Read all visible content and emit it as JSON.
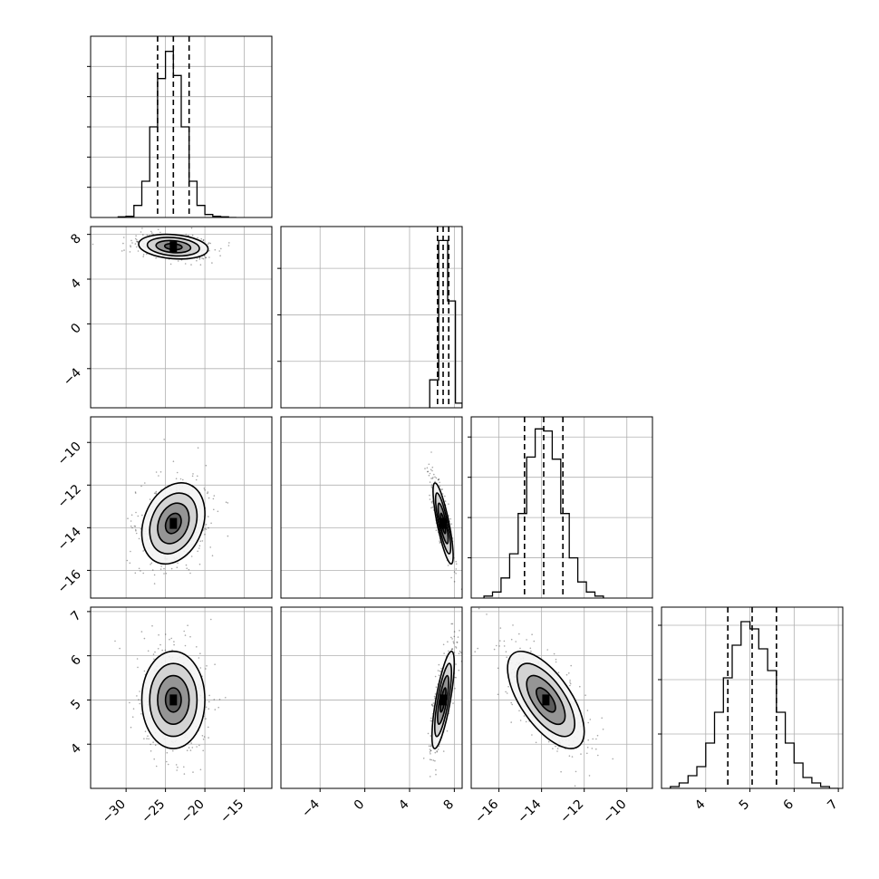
{
  "chart_data": {
    "type": "corner",
    "grid": true,
    "parameters": [
      {
        "range": [
          -34.5,
          -11.5
        ],
        "ticks": [
          -30,
          -25,
          -20,
          -15
        ],
        "tick_labels": [
          "−30",
          "−25",
          "−20",
          "−15"
        ],
        "quantiles": [
          -26,
          -24,
          -22
        ],
        "histogram": {
          "edges": [
            -31,
            -30,
            -29,
            -28,
            -27,
            -26,
            -25,
            -24,
            -23,
            -22,
            -21,
            -20,
            -19,
            -18,
            -17,
            -16
          ],
          "counts": [
            1,
            2,
            20,
            60,
            150,
            230,
            275,
            235,
            150,
            60,
            20,
            5,
            2,
            1,
            0
          ],
          "ymax": 300,
          "yticks": [
            50,
            100,
            150,
            200,
            250
          ]
        }
      },
      {
        "range": [
          -7.5,
          8.7
        ],
        "ticks": [
          -4,
          0,
          4,
          8
        ],
        "tick_labels": [
          "−4",
          "0",
          "4",
          "8"
        ],
        "quantiles": [
          6.5,
          7.0,
          7.5
        ],
        "histogram": {
          "edges": [
            5.8,
            6.6,
            7.4,
            8.1,
            8.7
          ],
          "counts": [
            30,
            180,
            115,
            5
          ],
          "ymax": 195,
          "yticks": [
            50,
            100,
            150
          ]
        }
      },
      {
        "range": [
          -17.3,
          -8.8
        ],
        "ticks": [
          -16,
          -14,
          -12,
          -10
        ],
        "tick_labels": [
          "−16",
          "−14",
          "−12",
          "−10"
        ],
        "quantiles": [
          -14.8,
          -13.9,
          -13.0
        ],
        "histogram": {
          "edges": [
            -16.7,
            -16.3,
            -15.9,
            -15.5,
            -15.1,
            -14.7,
            -14.3,
            -13.9,
            -13.5,
            -13.1,
            -12.7,
            -12.3,
            -11.9,
            -11.5,
            -11.1
          ],
          "counts": [
            1,
            3,
            10,
            22,
            42,
            70,
            84,
            83,
            69,
            42,
            20,
            8,
            3,
            1
          ],
          "ymax": 90,
          "yticks": [
            20,
            40,
            60,
            80
          ]
        }
      },
      {
        "range": [
          3.0,
          7.1
        ],
        "ticks": [
          4,
          5,
          6,
          7
        ],
        "tick_labels": [
          "4",
          "5",
          "6",
          "7"
        ],
        "quantiles": [
          4.5,
          5.05,
          5.6
        ],
        "histogram": {
          "edges": [
            3.2,
            3.4,
            3.6,
            3.8,
            4.0,
            4.2,
            4.4,
            4.6,
            4.8,
            5.0,
            5.2,
            5.4,
            5.6,
            5.8,
            6.0,
            6.2,
            6.4,
            6.6,
            6.8,
            7.0
          ],
          "counts": [
            1,
            3,
            7,
            12,
            25,
            42,
            61,
            79,
            92,
            88,
            77,
            65,
            42,
            25,
            14,
            6,
            3,
            1,
            0
          ],
          "ymax": 100,
          "yticks": [
            30,
            60,
            90
          ]
        }
      }
    ],
    "pairs": [
      {
        "x": 0,
        "y": 1,
        "mean": [
          -24,
          6.9
        ],
        "sd": [
          2.2,
          0.55
        ],
        "corr": -0.2,
        "ellipse_sd": [
          1.0,
          2.0
        ]
      },
      {
        "x": 0,
        "y": 2,
        "mean": [
          -24,
          -13.8
        ],
        "sd": [
          2.0,
          0.95
        ],
        "corr": 0.25
      },
      {
        "x": 1,
        "y": 2,
        "mean": [
          7.0,
          -13.8
        ],
        "sd": [
          0.45,
          0.95
        ],
        "corr": -0.8
      },
      {
        "x": 0,
        "y": 3,
        "mean": [
          -24,
          5.0
        ],
        "sd": [
          2.0,
          0.55
        ],
        "corr": 0.0
      },
      {
        "x": 1,
        "y": 3,
        "mean": [
          7.0,
          5.0
        ],
        "sd": [
          0.5,
          0.55
        ],
        "corr": 0.75
      },
      {
        "x": 2,
        "y": 3,
        "mean": [
          -13.8,
          5.0
        ],
        "sd": [
          0.9,
          0.55
        ],
        "corr": -0.65
      }
    ]
  }
}
